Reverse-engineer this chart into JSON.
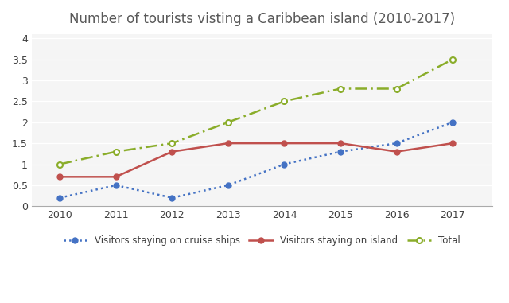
{
  "title": "Number of tourists visting a Caribbean island (2010-2017)",
  "years": [
    2010,
    2011,
    2012,
    2013,
    2014,
    2015,
    2016,
    2017
  ],
  "cruise_ships": [
    0.2,
    0.5,
    0.2,
    0.5,
    1.0,
    1.3,
    1.5,
    2.0
  ],
  "island": [
    0.7,
    0.7,
    1.3,
    1.5,
    1.5,
    1.5,
    1.3,
    1.5
  ],
  "total": [
    1.0,
    1.3,
    1.5,
    2.0,
    2.5,
    2.8,
    2.8,
    3.5
  ],
  "cruise_color": "#4472C4",
  "island_color": "#C0504D",
  "total_color": "#8AAD2A",
  "ylim": [
    0,
    4.1
  ],
  "yticks": [
    0,
    0.5,
    1.0,
    1.5,
    2.0,
    2.5,
    3.0,
    3.5,
    4.0
  ],
  "legend_cruise": "Visitors staying on cruise ships",
  "legend_island": "Visitors staying on island",
  "legend_total": "Total",
  "background_color": "#ffffff",
  "plot_bg_color": "#f5f5f5",
  "grid_color": "#ffffff",
  "title_color": "#595959"
}
